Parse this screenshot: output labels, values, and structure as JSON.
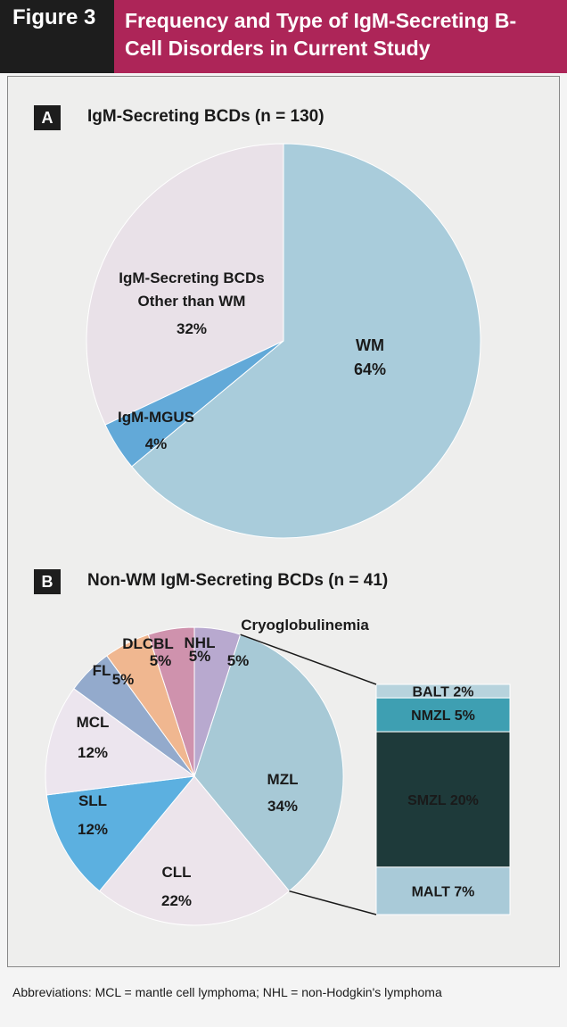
{
  "header": {
    "figure_label": "Figure 3",
    "title": "Frequency and Type of IgM-Secreting B-Cell Disorders in Current Study"
  },
  "colors": {
    "header_bg": "#1d1d1d",
    "title_bg": "#ad2558",
    "panel_bg": "#eeeeed"
  },
  "footnote": "Abbreviations: MCL = mantle cell lymphoma; NHL = non-Hodgkin's lymphoma",
  "chart_data": [
    {
      "type": "pie",
      "panel_letter": "A",
      "title": "IgM-Secreting BCDs (n = 130)",
      "slices": [
        {
          "label": "WM",
          "value": 64,
          "display": "64%",
          "color": "#a9ccdb"
        },
        {
          "label": "IgM-MGUS",
          "value": 4,
          "display": "4%",
          "color": "#62a9d8"
        },
        {
          "label": "IgM-Secreting BCDs Other than WM",
          "value": 32,
          "display": "32%",
          "color": "#e9e1e8"
        }
      ]
    },
    {
      "type": "pie",
      "panel_letter": "B",
      "title": "Non-WM IgM-Secreting BCDs (n = 41)",
      "slices": [
        {
          "label": "MZL",
          "value": 34,
          "display": "34%",
          "color": "#a7c9d6"
        },
        {
          "label": "CLL",
          "value": 22,
          "display": "22%",
          "color": "#ece4eb"
        },
        {
          "label": "SLL",
          "value": 12,
          "display": "12%",
          "color": "#5cb0e0"
        },
        {
          "label": "MCL",
          "value": 12,
          "display": "12%",
          "color": "#ece5ee"
        },
        {
          "label": "FL",
          "value": 5,
          "display": "5%",
          "color": "#93aacc"
        },
        {
          "label": "DLCBL",
          "value": 5,
          "display": "5%",
          "color": "#f0b790"
        },
        {
          "label": "NHL",
          "value": 5,
          "display": "5%",
          "color": "#cf92ad"
        },
        {
          "label": "Cryoglobulinemia",
          "value": 5,
          "display": "5%",
          "color": "#b8a9cf"
        }
      ],
      "breakdown": {
        "of": "MZL",
        "segments": [
          {
            "label": "BALT",
            "value": 2,
            "display": "BALT 2%",
            "color": "#b7d3dd",
            "text_color": "#1a1a1a"
          },
          {
            "label": "NMZL",
            "value": 5,
            "display": "NMZL 5%",
            "color": "#3e9fb2",
            "text_color": "#ffffff"
          },
          {
            "label": "SMZL",
            "value": 20,
            "display": "SMZL 20%",
            "color": "#1e3a3a",
            "text_color": "#e8e8e8"
          },
          {
            "label": "MALT",
            "value": 7,
            "display": "MALT 7%",
            "color": "#a9cad8",
            "text_color": "#1a1a1a"
          }
        ]
      }
    }
  ]
}
